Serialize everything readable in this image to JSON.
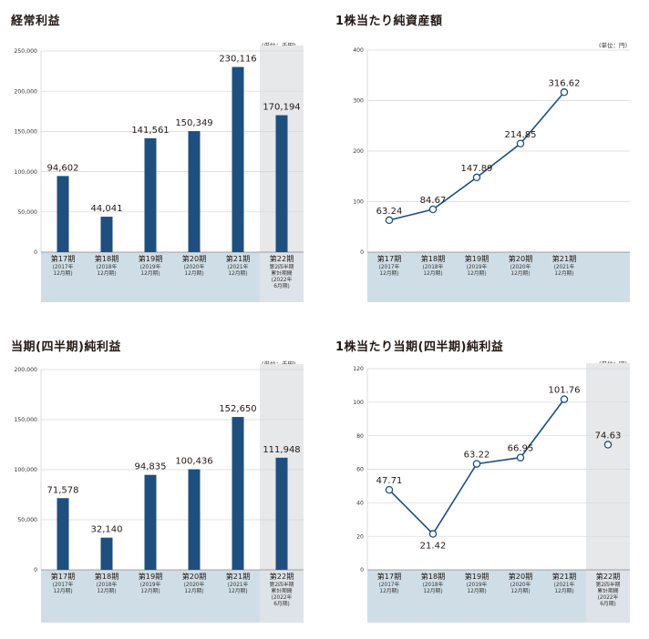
{
  "colors": {
    "bar": "#1e4f7f",
    "line": "#1e4f7f",
    "band": "#cfdee6",
    "grid": "#d6d6d6",
    "shade": "#e7e8ea",
    "axis": "#231815"
  },
  "chart_data": [
    {
      "type": "bar",
      "title": "経常利益",
      "unit": "(単位：千円)",
      "ylim": [
        0,
        250000
      ],
      "yticks": [
        "0",
        "50,000",
        "100,000",
        "150,000",
        "200,000",
        "250,000"
      ],
      "categories": [
        {
          "label": "第17期",
          "sub": [
            "(2017年",
            "12月期)"
          ]
        },
        {
          "label": "第18期",
          "sub": [
            "(2018年",
            "12月期)"
          ]
        },
        {
          "label": "第19期",
          "sub": [
            "(2019年",
            "12月期)"
          ]
        },
        {
          "label": "第20期",
          "sub": [
            "(2020年",
            "12月期)"
          ]
        },
        {
          "label": "第21期",
          "sub": [
            "(2021年",
            "12月期)"
          ]
        },
        {
          "label": "第22期",
          "sub": [
            "第2四半期",
            "累計期間",
            "(2022年",
            "6月期)"
          ]
        }
      ],
      "values": [
        94602,
        44041,
        141561,
        150349,
        230116,
        170194
      ],
      "value_labels": [
        "94,602",
        "44,041",
        "141,561",
        "150,349",
        "230,116",
        "170,194"
      ],
      "highlight_last": true
    },
    {
      "type": "line",
      "title": "1株当たり純資産額",
      "unit": "(単位：円)",
      "ylim": [
        0,
        400
      ],
      "yticks": [
        "0",
        "100",
        "200",
        "300",
        "400"
      ],
      "categories": [
        {
          "label": "第17期",
          "sub": [
            "(2017年",
            "12月期)"
          ]
        },
        {
          "label": "第18期",
          "sub": [
            "(2018年",
            "12月期)"
          ]
        },
        {
          "label": "第19期",
          "sub": [
            "(2019年",
            "12月期)"
          ]
        },
        {
          "label": "第20期",
          "sub": [
            "(2020年",
            "12月期)"
          ]
        },
        {
          "label": "第21期",
          "sub": [
            "(2021年",
            "12月期)"
          ]
        }
      ],
      "values": [
        63.24,
        84.67,
        147.89,
        214.85,
        316.62
      ],
      "value_labels": [
        "63.24",
        "84.67",
        "147.89",
        "214.85",
        "316.62"
      ],
      "highlight_last": false
    },
    {
      "type": "bar",
      "title": "当期(四半期)純利益",
      "unit": "(単位：千円)",
      "ylim": [
        0,
        200000
      ],
      "yticks": [
        "0",
        "50,000",
        "100,000",
        "150,000",
        "200,000"
      ],
      "categories": [
        {
          "label": "第17期",
          "sub": [
            "(2017年",
            "12月期)"
          ]
        },
        {
          "label": "第18期",
          "sub": [
            "(2018年",
            "12月期)"
          ]
        },
        {
          "label": "第19期",
          "sub": [
            "(2019年",
            "12月期)"
          ]
        },
        {
          "label": "第20期",
          "sub": [
            "(2020年",
            "12月期)"
          ]
        },
        {
          "label": "第21期",
          "sub": [
            "(2021年",
            "12月期)"
          ]
        },
        {
          "label": "第22期",
          "sub": [
            "第2四半期",
            "累計期間",
            "(2022年",
            "6月期)"
          ]
        }
      ],
      "values": [
        71578,
        32140,
        94835,
        100436,
        152650,
        111948
      ],
      "value_labels": [
        "71,578",
        "32,140",
        "94,835",
        "100,436",
        "152,650",
        "111,948"
      ],
      "highlight_last": true
    },
    {
      "type": "line",
      "title": "1株当たり当期(四半期)純利益",
      "unit": "(単位：円)",
      "ylim": [
        0,
        120
      ],
      "yticks": [
        "0",
        "20",
        "40",
        "60",
        "80",
        "100",
        "120"
      ],
      "categories": [
        {
          "label": "第17期",
          "sub": [
            "(2017年",
            "12月期)"
          ]
        },
        {
          "label": "第18期",
          "sub": [
            "(2018年",
            "12月期)"
          ]
        },
        {
          "label": "第19期",
          "sub": [
            "(2019年",
            "12月期)"
          ]
        },
        {
          "label": "第20期",
          "sub": [
            "(2020年",
            "12月期)"
          ]
        },
        {
          "label": "第21期",
          "sub": [
            "(2021年",
            "12月期)"
          ]
        },
        {
          "label": "第22期",
          "sub": [
            "第2四半期",
            "累計期間",
            "(2022年",
            "6月期)"
          ]
        }
      ],
      "values": [
        47.71,
        21.42,
        63.22,
        66.95,
        101.76,
        74.63
      ],
      "value_labels": [
        "47.71",
        "21.42",
        "63.22",
        "66.95",
        "101.76",
        "74.63"
      ],
      "label_position": [
        "above",
        "below",
        "above",
        "above",
        "above",
        "above"
      ],
      "connect_last": false,
      "highlight_last": true
    }
  ]
}
